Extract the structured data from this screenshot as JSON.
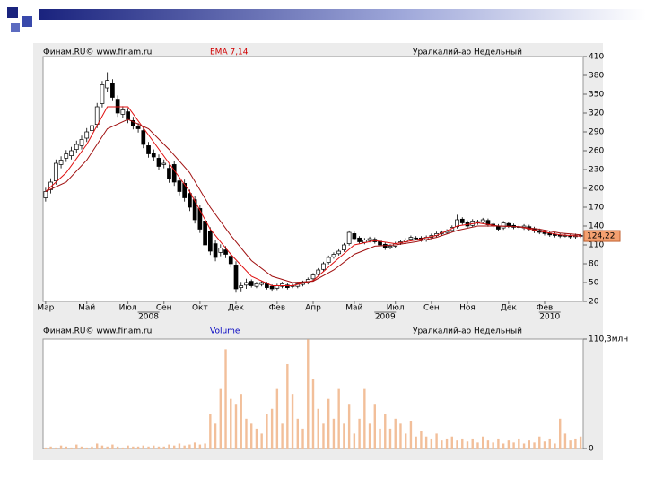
{
  "chart_data": [
    {
      "type": "candlestick",
      "source": "Финам.RU© www.finam.ru",
      "indicator": "EMA 7,14",
      "title": "Уралкалий-ао Недельный",
      "xlim": [
        -0.5,
        104.5
      ],
      "xticks": [
        {
          "value": 0,
          "label": "Мар"
        },
        {
          "value": 8,
          "label": "Май"
        },
        {
          "value": 16,
          "label": "Июл"
        },
        {
          "value": 23,
          "label": "Сен"
        },
        {
          "value": 30,
          "label": "Окт"
        },
        {
          "value": 37,
          "label": "Дек"
        },
        {
          "value": 45,
          "label": "Фев"
        },
        {
          "value": 52,
          "label": "Апр"
        },
        {
          "value": 60,
          "label": "Май"
        },
        {
          "value": 68,
          "label": "Июл"
        },
        {
          "value": 75,
          "label": "Сен"
        },
        {
          "value": 82,
          "label": "Ноя"
        },
        {
          "value": 90,
          "label": "Дек"
        },
        {
          "value": 97,
          "label": "Фев"
        }
      ],
      "year_ticks": [
        {
          "value": 20,
          "label": "2008"
        },
        {
          "value": 66,
          "label": "2009"
        },
        {
          "value": 98,
          "label": "2010"
        }
      ],
      "ylim": [
        20,
        410
      ],
      "yticks": [
        20,
        50,
        80,
        110,
        140,
        170,
        200,
        230,
        260,
        290,
        320,
        350,
        380,
        410
      ],
      "up_color": "#ffffff",
      "down_color": "#000000",
      "open": [
        185,
        198,
        212,
        238,
        248,
        252,
        262,
        268,
        280,
        292,
        302,
        335,
        360,
        368,
        342,
        318,
        322,
        308,
        298,
        292,
        268,
        256,
        248,
        238,
        232,
        238,
        212,
        208,
        192,
        182,
        168,
        148,
        132,
        112,
        98,
        102,
        92,
        78,
        42,
        46,
        52,
        44,
        47,
        48,
        44,
        41,
        44,
        46,
        44,
        44,
        47,
        50,
        56,
        63,
        71,
        82,
        91,
        96,
        102,
        112,
        128,
        121,
        114,
        117,
        119,
        116,
        111,
        106,
        108,
        113,
        115,
        119,
        121,
        121,
        118,
        122,
        125,
        128,
        130,
        133,
        139,
        151,
        146,
        141,
        147,
        146,
        149,
        143,
        140,
        137,
        144,
        141,
        139,
        137,
        139,
        136,
        133,
        131,
        129,
        127,
        126,
        125,
        124,
        123,
        125
      ],
      "high": [
        201,
        216,
        246,
        251,
        261,
        266,
        276,
        284,
        296,
        306,
        336,
        371,
        385,
        374,
        348,
        331,
        328,
        314,
        304,
        298,
        274,
        262,
        254,
        246,
        238,
        244,
        218,
        214,
        198,
        188,
        174,
        154,
        138,
        118,
        111,
        108,
        98,
        84,
        51,
        56,
        55,
        51,
        53,
        51,
        47,
        48,
        51,
        49,
        48,
        51,
        53,
        58,
        65,
        73,
        83,
        93,
        98,
        103,
        113,
        133,
        131,
        124,
        121,
        123,
        122,
        119,
        114,
        111,
        115,
        118,
        121,
        125,
        124,
        124,
        125,
        128,
        131,
        133,
        135,
        141,
        158,
        154,
        149,
        151,
        150,
        153,
        152,
        146,
        143,
        148,
        147,
        144,
        142,
        143,
        142,
        139,
        136,
        134,
        132,
        130,
        129,
        128,
        127,
        128,
        128
      ],
      "low": [
        179,
        192,
        206,
        232,
        242,
        246,
        256,
        262,
        274,
        286,
        296,
        329,
        354,
        339,
        314,
        312,
        304,
        294,
        289,
        264,
        249,
        244,
        229,
        232,
        209,
        204,
        189,
        179,
        164,
        144,
        129,
        104,
        94,
        84,
        92,
        89,
        74,
        34,
        36,
        40,
        42,
        41,
        44,
        39,
        37,
        38,
        41,
        39,
        41,
        41,
        44,
        47,
        53,
        60,
        68,
        79,
        88,
        93,
        99,
        109,
        117,
        112,
        111,
        114,
        112,
        107,
        102,
        103,
        105,
        110,
        112,
        116,
        117,
        115,
        115,
        119,
        122,
        125,
        127,
        130,
        136,
        142,
        137,
        138,
        142,
        143,
        139,
        137,
        132,
        134,
        137,
        135,
        135,
        134,
        132,
        129,
        127,
        125,
        123,
        122,
        121,
        122,
        120,
        120,
        121
      ],
      "close": [
        195,
        210,
        240,
        245,
        255,
        260,
        270,
        278,
        290,
        300,
        330,
        365,
        372,
        345,
        320,
        325,
        310,
        300,
        295,
        270,
        255,
        250,
        235,
        240,
        215,
        210,
        195,
        185,
        170,
        150,
        135,
        110,
        100,
        90,
        105,
        95,
        80,
        40,
        45,
        50,
        45,
        48,
        50,
        42,
        40,
        45,
        48,
        42,
        45,
        48,
        50,
        55,
        62,
        70,
        80,
        90,
        95,
        100,
        110,
        130,
        120,
        115,
        118,
        120,
        115,
        110,
        105,
        108,
        112,
        115,
        118,
        122,
        120,
        118,
        122,
        125,
        128,
        130,
        132,
        138,
        150,
        145,
        140,
        148,
        145,
        150,
        142,
        140,
        135,
        145,
        140,
        138,
        138,
        140,
        135,
        132,
        130,
        128,
        126,
        125,
        124,
        125,
        123,
        125,
        124.22
      ],
      "series": [
        {
          "color": "#e01010",
          "x": [
            0,
            4,
            8,
            12,
            16,
            20,
            24,
            28,
            32,
            36,
            40,
            44,
            48,
            52,
            56,
            60,
            64,
            68,
            72,
            76,
            80,
            84,
            88,
            92,
            96,
            100,
            104
          ],
          "values": [
            195,
            225,
            270,
            330,
            330,
            285,
            240,
            195,
            135,
            95,
            60,
            45,
            45,
            53,
            82,
            110,
            117,
            112,
            118,
            125,
            140,
            145,
            140,
            139,
            132,
            126,
            124
          ]
        },
        {
          "color": "#a01010",
          "x": [
            0,
            4,
            8,
            12,
            16,
            20,
            24,
            28,
            32,
            36,
            40,
            44,
            48,
            52,
            56,
            60,
            64,
            68,
            72,
            76,
            80,
            84,
            88,
            92,
            96,
            100,
            104
          ],
          "values": [
            195,
            210,
            245,
            295,
            310,
            295,
            262,
            225,
            170,
            125,
            85,
            60,
            50,
            52,
            70,
            95,
            108,
            110,
            115,
            122,
            133,
            140,
            140,
            139,
            135,
            129,
            126
          ]
        }
      ],
      "last_value": {
        "value": 124.22,
        "label": "124,22"
      },
      "last_value_color": "#f4a070"
    },
    {
      "type": "bar",
      "source": "Финам.RU© www.finam.ru",
      "indicator": "Volume",
      "title": "Уралкалий-ао Недельный",
      "xlim": [
        -0.5,
        104.5
      ],
      "ylim": [
        0,
        110.3
      ],
      "yticks": [
        {
          "value": 110.3,
          "label": "110,3млн"
        },
        0
      ],
      "color": "#f2bf9a",
      "values": [
        1,
        2,
        1,
        3,
        2,
        1,
        4,
        2,
        1,
        2,
        5,
        3,
        2,
        4,
        2,
        1,
        3,
        2,
        2,
        3,
        2,
        3,
        2,
        2,
        4,
        3,
        5,
        3,
        4,
        6,
        4,
        5,
        35,
        25,
        60,
        100,
        50,
        45,
        55,
        30,
        25,
        20,
        15,
        35,
        40,
        60,
        25,
        85,
        55,
        30,
        20,
        110,
        70,
        40,
        25,
        50,
        30,
        60,
        25,
        45,
        15,
        30,
        60,
        25,
        45,
        20,
        35,
        20,
        30,
        25,
        15,
        28,
        12,
        18,
        12,
        10,
        15,
        8,
        10,
        12,
        8,
        10,
        7,
        10,
        6,
        12,
        8,
        6,
        10,
        5,
        8,
        6,
        10,
        5,
        8,
        6,
        12,
        7,
        10,
        5,
        30,
        15,
        8,
        10,
        12
      ]
    }
  ]
}
